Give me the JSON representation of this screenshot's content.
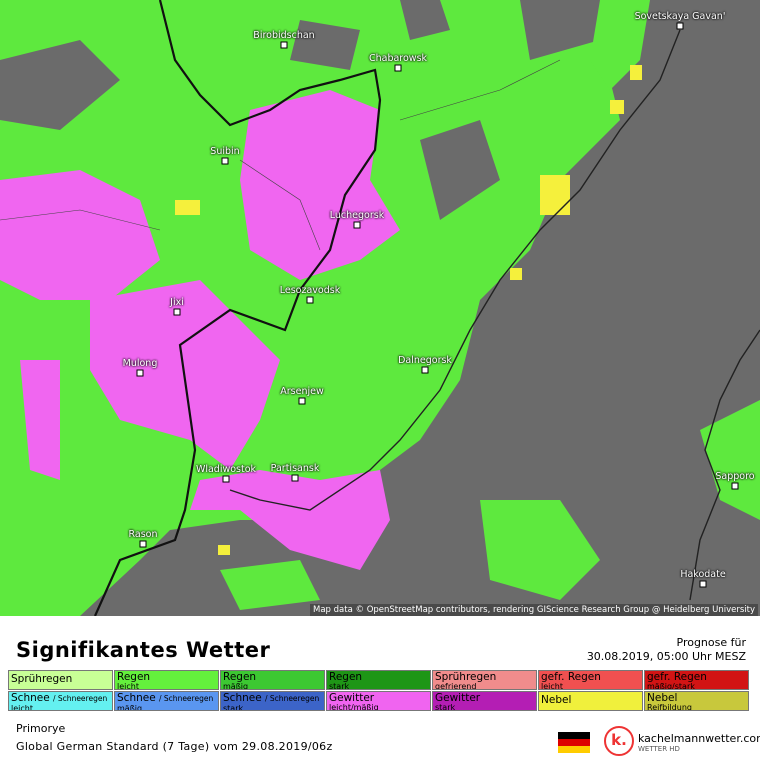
{
  "map": {
    "cities": [
      "Sovetskaya Gavan'",
      "Birobidschan",
      "Chabarowsk",
      "Suibin",
      "Luchegorsk",
      "Lesozavodsk",
      "Jixi",
      "Mulong",
      "Dalnegorsk",
      "Arsenjew",
      "Wladiwostok",
      "Partisansk",
      "Rason",
      "Sapporo",
      "Hakodate"
    ],
    "attribution": "Map data © OpenStreetMap contributors, rendering GIScience Research Group @ Heidelberg University"
  },
  "header": {
    "title": "Signifikantes Wetter",
    "forecast_label": "Prognose für",
    "forecast_time": "30.08.2019, 05:00 Uhr MESZ"
  },
  "legend": {
    "rows": [
      [
        {
          "main": "Sprühregen",
          "color": "#c8ff96"
        },
        {
          "main": "Regen",
          "sub": "leicht",
          "color": "#64f03c"
        },
        {
          "main": "Regen",
          "sub": "mäßig",
          "color": "#3cc832"
        },
        {
          "main": "Regen",
          "sub": "stark",
          "color": "#1e9616"
        },
        {
          "main": "Sprühregen",
          "sub": "gefrierend",
          "color": "#f08c8c"
        },
        {
          "main": "gefr. Regen",
          "sub": "leicht",
          "color": "#f05050"
        },
        {
          "main": "gefr. Regen",
          "sub": "mäßig/stark",
          "color": "#d21414"
        }
      ],
      [
        {
          "main": "Schnee",
          "extra": "/ Schneeregen",
          "sub": "leicht",
          "color": "#64f0f0"
        },
        {
          "main": "Schnee",
          "extra": "/ Schneeregen",
          "sub": "mäßig",
          "color": "#5a96f0"
        },
        {
          "main": "Schnee",
          "extra": "/ Schneeregen",
          "sub": "stark",
          "color": "#3c64c8"
        },
        {
          "main": "Gewitter",
          "sub": "leicht/mäßig",
          "color": "#f064f0"
        },
        {
          "main": "Gewitter",
          "sub": "stark",
          "color": "#b41eb4"
        },
        {
          "main": "Nebel",
          "color": "#f0f03c"
        },
        {
          "main": "Nebel",
          "sub": "Reifbildung",
          "color": "#c8c83c"
        }
      ]
    ]
  },
  "footer": {
    "region": "Primorye",
    "model": "Global German Standard (7 Tage) vom 29.08.2019/06z",
    "logo": "k.",
    "site": "kachelmannwetter.com",
    "site_sub": "WETTER HD"
  }
}
